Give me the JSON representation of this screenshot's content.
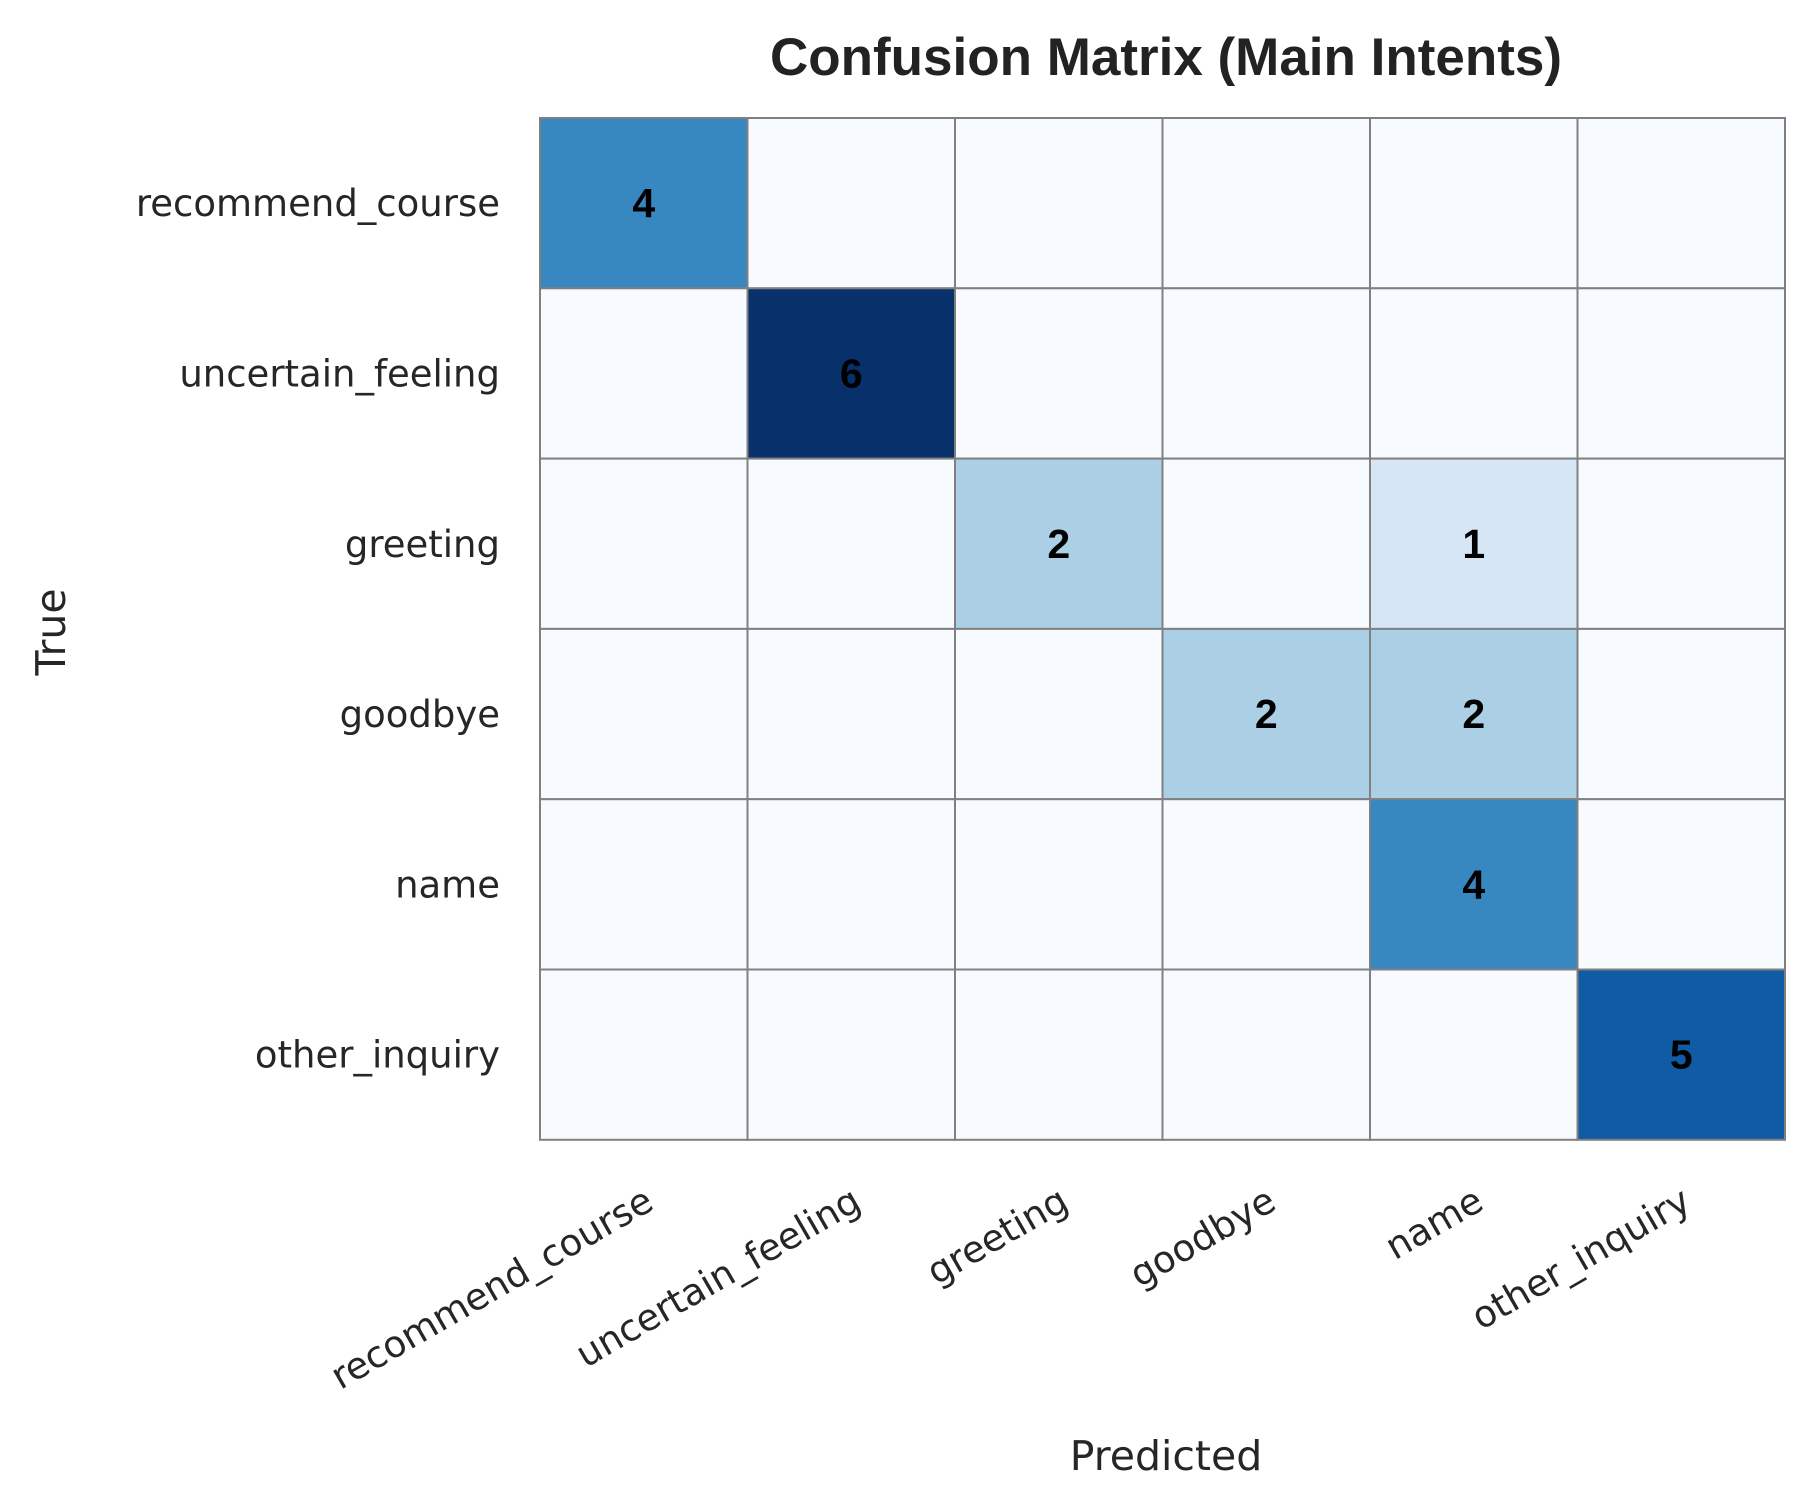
{
  "chart_data": {
    "type": "heatmap",
    "title": "Confusion Matrix (Main Intents)",
    "xlabel": "Predicted",
    "ylabel": "True",
    "x_categories": [
      "recommend_course",
      "uncertain_feeling",
      "greeting",
      "goodbye",
      "name",
      "other_inquiry"
    ],
    "y_categories": [
      "recommend_course",
      "uncertain_feeling",
      "greeting",
      "goodbye",
      "name",
      "other_inquiry"
    ],
    "values": [
      [
        4,
        0,
        0,
        0,
        0,
        0
      ],
      [
        0,
        6,
        0,
        0,
        0,
        0
      ],
      [
        0,
        0,
        2,
        0,
        1,
        0
      ],
      [
        0,
        0,
        0,
        2,
        2,
        0
      ],
      [
        0,
        0,
        0,
        0,
        4,
        0
      ],
      [
        0,
        0,
        0,
        0,
        0,
        5
      ]
    ],
    "annotations_hidden_for_zero": true,
    "colormap": "Blues",
    "vmin": 0,
    "vmax": 6,
    "colorbar": false,
    "cell_border_color": "#808080"
  }
}
